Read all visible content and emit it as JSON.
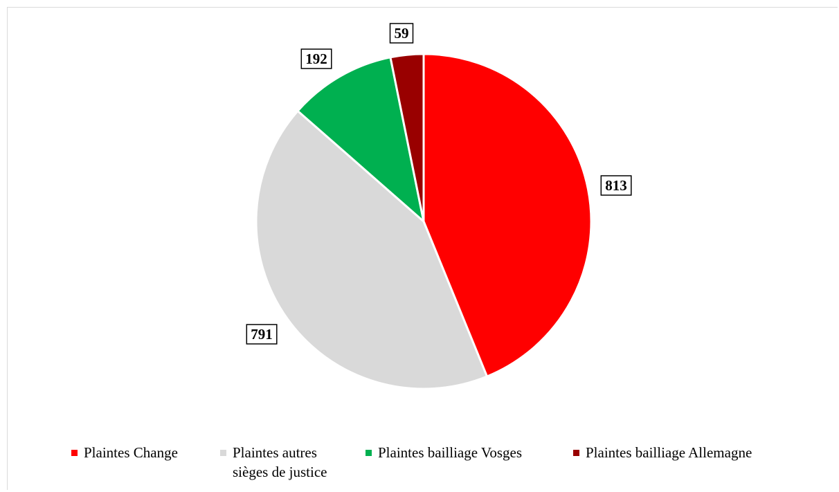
{
  "chart_data": {
    "type": "pie",
    "slices": [
      {
        "label": "Plaintes Change",
        "value": 813,
        "color": "#ff0000"
      },
      {
        "label": "Plaintes autres\nsièges de justice",
        "value": 791,
        "color": "#d9d9d9"
      },
      {
        "label": "Plaintes bailliage Vosges",
        "value": 192,
        "color": "#00b050"
      },
      {
        "label": "Plaintes bailliage Allemagne",
        "value": 59,
        "color": "#990000"
      }
    ],
    "data_labels": [
      "813",
      "791",
      "192",
      "59"
    ],
    "legend": {
      "placement": "bottom",
      "entries": [
        "Plaintes Change",
        "Plaintes autres\nsièges de justice",
        "Plaintes bailliage Vosges",
        "Plaintes bailliage Allemagne"
      ]
    },
    "start_angle": "12 o'clock",
    "direction": "clockwise"
  }
}
